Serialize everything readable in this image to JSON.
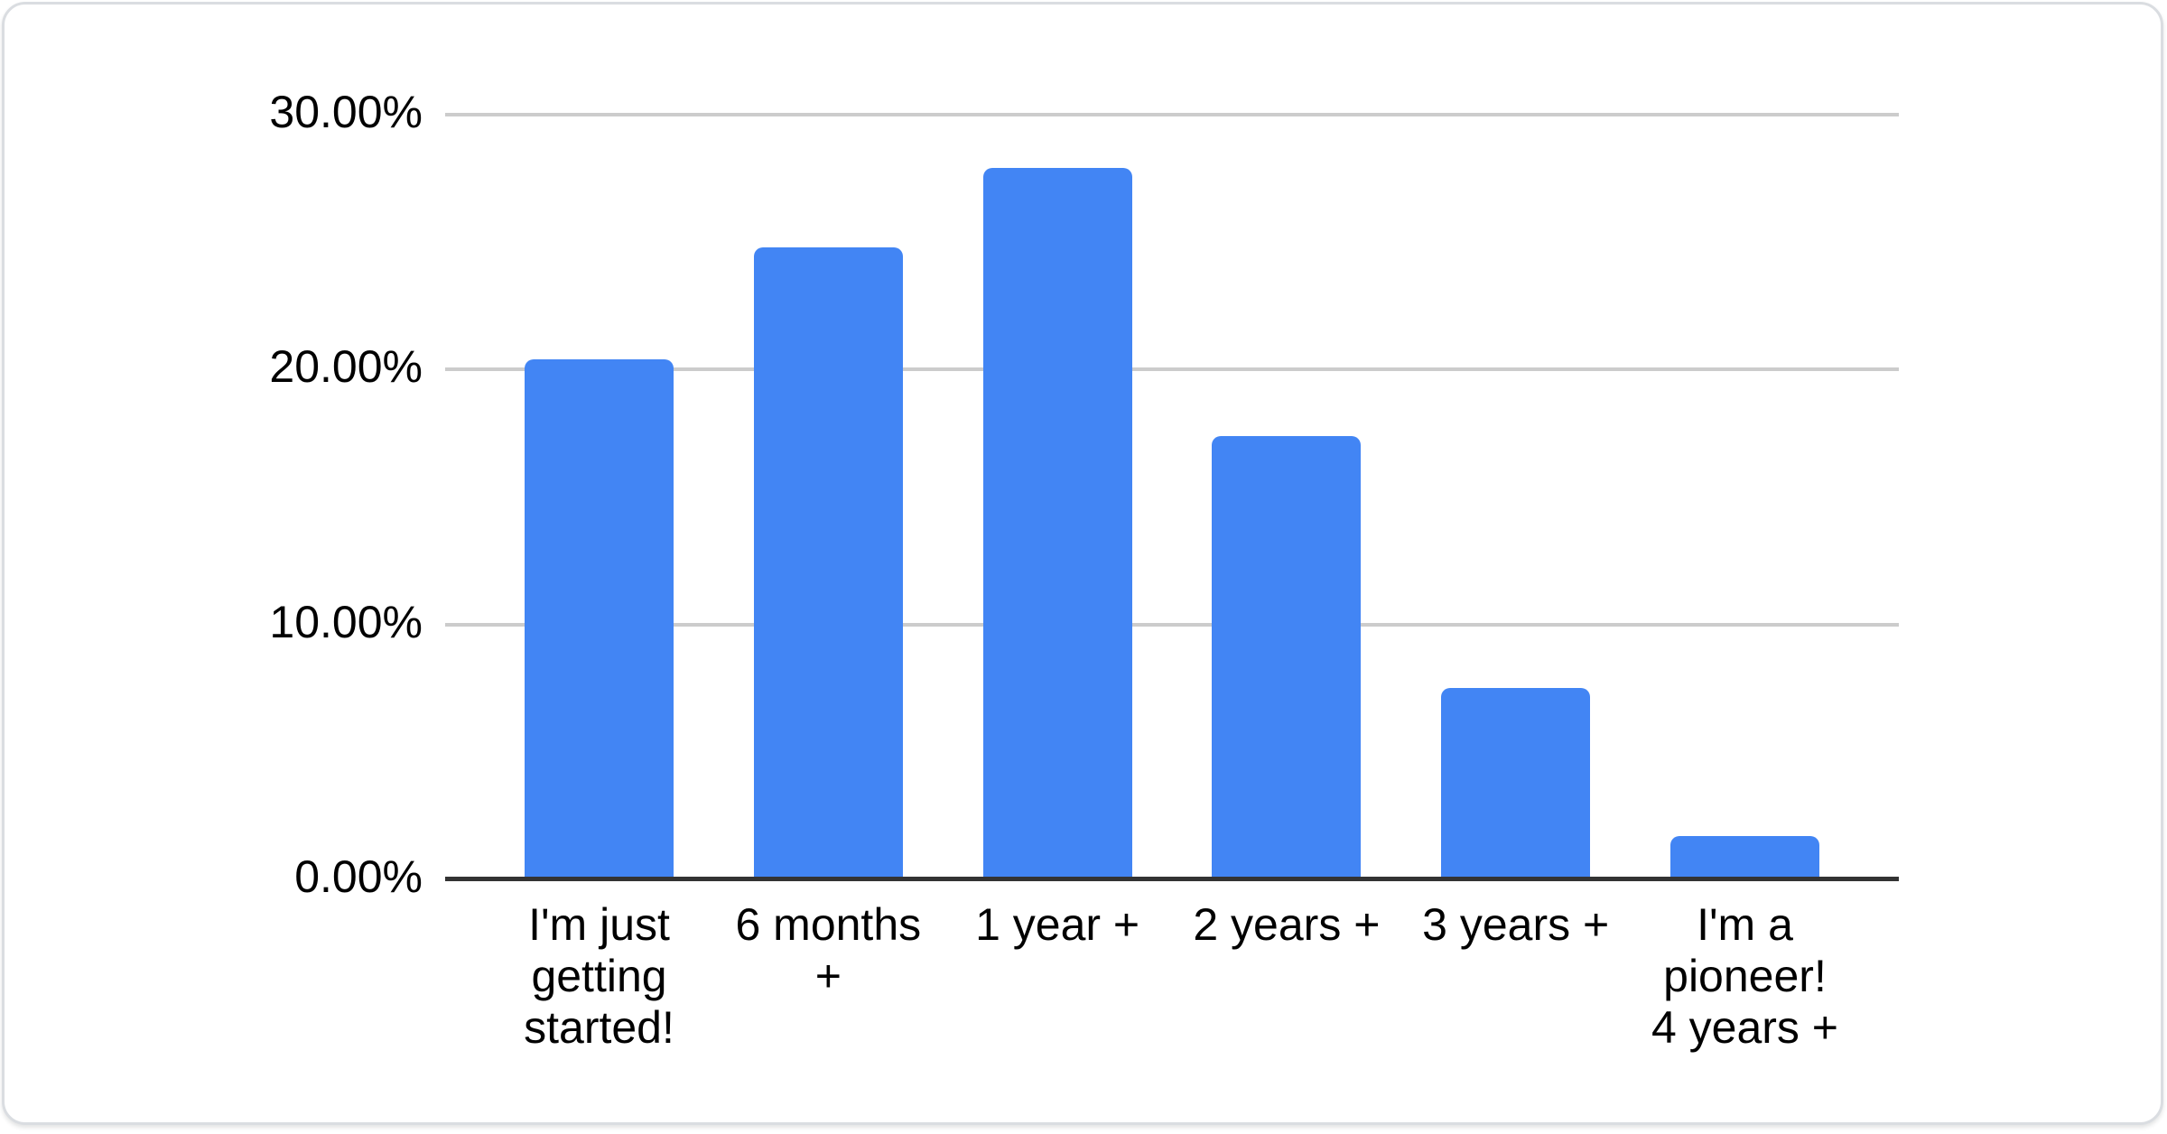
{
  "page": {
    "background": "#ffffff"
  },
  "card": {
    "background": "#ffffff",
    "border_color": "#dadde1"
  },
  "chart_data": {
    "type": "bar",
    "title": "",
    "categories": [
      "I'm just getting started!",
      "6 months +",
      "1 year +",
      "2 years +",
      "3 years +",
      "I'm a pioneer! 4 years +"
    ],
    "category_display": [
      "I'm just\ngetting\nstarted!",
      "6 months\n+",
      "1 year +",
      "2 years +",
      "3 years +",
      "I'm a\npioneer!\n4 years +"
    ],
    "values": [
      20.4,
      24.8,
      27.9,
      17.4,
      7.5,
      1.7
    ],
    "value_unit": "%",
    "y_ticks": [
      {
        "value": 0,
        "label": "0.00%"
      },
      {
        "value": 10,
        "label": "10.00%"
      },
      {
        "value": 20,
        "label": "20.00%"
      },
      {
        "value": 30,
        "label": "30.00%"
      }
    ],
    "ylim": [
      0,
      30
    ],
    "xlabel": "",
    "ylabel": "",
    "legend": "none",
    "grid": true,
    "bar_color": "#4285f4",
    "gridline_color": "#cccccc",
    "axis_line_color": "#333333",
    "label_color": "#000000"
  }
}
